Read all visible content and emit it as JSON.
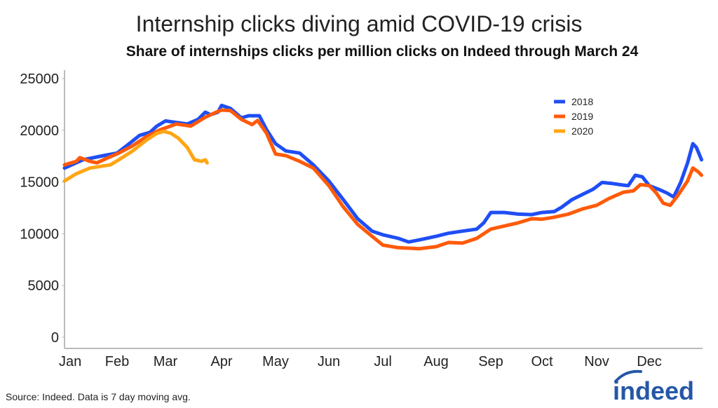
{
  "title": "Internship clicks diving amid COVID-19 crisis",
  "subtitle": "Share of internships clicks per million clicks on Indeed through March 24",
  "source": "Source: Indeed. Data is 7 day moving avg.",
  "logo": "indeed",
  "chart_data": {
    "type": "line",
    "title": "Internship clicks diving amid COVID-19 crisis",
    "subtitle": "Share of internships clicks per million clicks on Indeed through March 24",
    "xlabel": "",
    "ylabel": "",
    "x_ticks": [
      "Jan",
      "Feb",
      "Mar",
      "Apr",
      "May",
      "Jun",
      "Jul",
      "Aug",
      "Sep",
      "Oct",
      "Nov",
      "Dec"
    ],
    "y_ticks": [
      0,
      5000,
      10000,
      15000,
      20000,
      25000
    ],
    "ylim": [
      0,
      25000
    ],
    "grid": false,
    "legend_position": "top-right",
    "series": [
      {
        "name": "2018",
        "color": "#1f4ef5",
        "points": [
          [
            "01-01",
            16350
          ],
          [
            "01-12",
            17150
          ],
          [
            "01-24",
            17550
          ],
          [
            "02-01",
            17800
          ],
          [
            "02-08",
            18700
          ],
          [
            "02-14",
            19500
          ],
          [
            "02-20",
            19800
          ],
          [
            "02-24",
            20400
          ],
          [
            "03-01",
            20900
          ],
          [
            "03-07",
            20750
          ],
          [
            "03-13",
            20600
          ],
          [
            "03-19",
            21050
          ],
          [
            "03-23",
            21750
          ],
          [
            "03-26",
            21500
          ],
          [
            "03-30",
            21750
          ],
          [
            "04-01",
            22400
          ],
          [
            "04-06",
            22100
          ],
          [
            "04-12",
            21200
          ],
          [
            "04-16",
            21400
          ],
          [
            "04-22",
            21400
          ],
          [
            "04-26",
            20050
          ],
          [
            "05-01",
            18700
          ],
          [
            "05-07",
            18000
          ],
          [
            "05-15",
            17800
          ],
          [
            "05-23",
            16650
          ],
          [
            "06-01",
            15100
          ],
          [
            "06-09",
            13300
          ],
          [
            "06-17",
            11450
          ],
          [
            "06-25",
            10250
          ],
          [
            "07-01",
            9900
          ],
          [
            "07-10",
            9550
          ],
          [
            "07-16",
            9200
          ],
          [
            "07-22",
            9400
          ],
          [
            "08-01",
            9750
          ],
          [
            "08-08",
            10050
          ],
          [
            "08-16",
            10250
          ],
          [
            "08-24",
            10450
          ],
          [
            "08-28",
            11050
          ],
          [
            "09-01",
            12050
          ],
          [
            "09-09",
            12050
          ],
          [
            "09-17",
            11900
          ],
          [
            "09-25",
            11850
          ],
          [
            "10-01",
            12050
          ],
          [
            "10-08",
            12150
          ],
          [
            "10-12",
            12550
          ],
          [
            "10-18",
            13300
          ],
          [
            "10-24",
            13800
          ],
          [
            "10-30",
            14300
          ],
          [
            "11-04",
            14950
          ],
          [
            "11-10",
            14850
          ],
          [
            "11-16",
            14700
          ],
          [
            "11-19",
            14650
          ],
          [
            "11-23",
            15650
          ],
          [
            "11-27",
            15500
          ],
          [
            "12-01",
            14650
          ],
          [
            "12-07",
            14250
          ],
          [
            "12-11",
            13950
          ],
          [
            "12-15",
            13550
          ],
          [
            "12-19",
            14950
          ],
          [
            "12-23",
            16850
          ],
          [
            "12-26",
            18700
          ],
          [
            "12-28",
            18350
          ],
          [
            "12-31",
            17150
          ]
        ]
      },
      {
        "name": "2019",
        "color": "#ff5a0a",
        "points": [
          [
            "01-01",
            16650
          ],
          [
            "01-08",
            17000
          ],
          [
            "01-10",
            17350
          ],
          [
            "01-16",
            17000
          ],
          [
            "01-20",
            16850
          ],
          [
            "01-26",
            17300
          ],
          [
            "02-02",
            17800
          ],
          [
            "02-10",
            18500
          ],
          [
            "02-18",
            19400
          ],
          [
            "02-26",
            20050
          ],
          [
            "03-07",
            20600
          ],
          [
            "03-15",
            20400
          ],
          [
            "03-23",
            21250
          ],
          [
            "03-29",
            21750
          ],
          [
            "04-01",
            21950
          ],
          [
            "04-06",
            21900
          ],
          [
            "04-12",
            21050
          ],
          [
            "04-18",
            20550
          ],
          [
            "04-21",
            20950
          ],
          [
            "04-26",
            19700
          ],
          [
            "05-01",
            17700
          ],
          [
            "05-07",
            17550
          ],
          [
            "05-15",
            17000
          ],
          [
            "05-23",
            16350
          ],
          [
            "06-01",
            14650
          ],
          [
            "06-09",
            12600
          ],
          [
            "06-17",
            10900
          ],
          [
            "06-25",
            9750
          ],
          [
            "07-01",
            8900
          ],
          [
            "07-10",
            8650
          ],
          [
            "07-22",
            8550
          ],
          [
            "08-01",
            8750
          ],
          [
            "08-08",
            9150
          ],
          [
            "08-16",
            9100
          ],
          [
            "08-24",
            9550
          ],
          [
            "09-01",
            10450
          ],
          [
            "09-09",
            10750
          ],
          [
            "09-17",
            11050
          ],
          [
            "09-25",
            11450
          ],
          [
            "10-01",
            11400
          ],
          [
            "10-08",
            11600
          ],
          [
            "10-16",
            11900
          ],
          [
            "10-24",
            12400
          ],
          [
            "11-01",
            12750
          ],
          [
            "11-08",
            13400
          ],
          [
            "11-16",
            14000
          ],
          [
            "11-22",
            14150
          ],
          [
            "11-26",
            14750
          ],
          [
            "12-01",
            14650
          ],
          [
            "12-05",
            13950
          ],
          [
            "12-09",
            12950
          ],
          [
            "12-13",
            12750
          ],
          [
            "12-17",
            13600
          ],
          [
            "12-23",
            15100
          ],
          [
            "12-26",
            16350
          ],
          [
            "12-29",
            16000
          ],
          [
            "12-31",
            15650
          ]
        ]
      },
      {
        "name": "2020",
        "color": "#ffa514",
        "points": [
          [
            "01-01",
            15100
          ],
          [
            "01-08",
            15800
          ],
          [
            "01-16",
            16350
          ],
          [
            "01-24",
            16550
          ],
          [
            "01-28",
            16650
          ],
          [
            "02-02",
            17150
          ],
          [
            "02-10",
            18000
          ],
          [
            "02-18",
            19050
          ],
          [
            "02-24",
            19700
          ],
          [
            "02-28",
            19900
          ],
          [
            "03-04",
            19700
          ],
          [
            "03-08",
            19250
          ],
          [
            "03-13",
            18350
          ],
          [
            "03-17",
            17150
          ],
          [
            "03-21",
            17000
          ],
          [
            "03-23",
            17150
          ],
          [
            "03-24",
            16850
          ]
        ]
      }
    ]
  }
}
